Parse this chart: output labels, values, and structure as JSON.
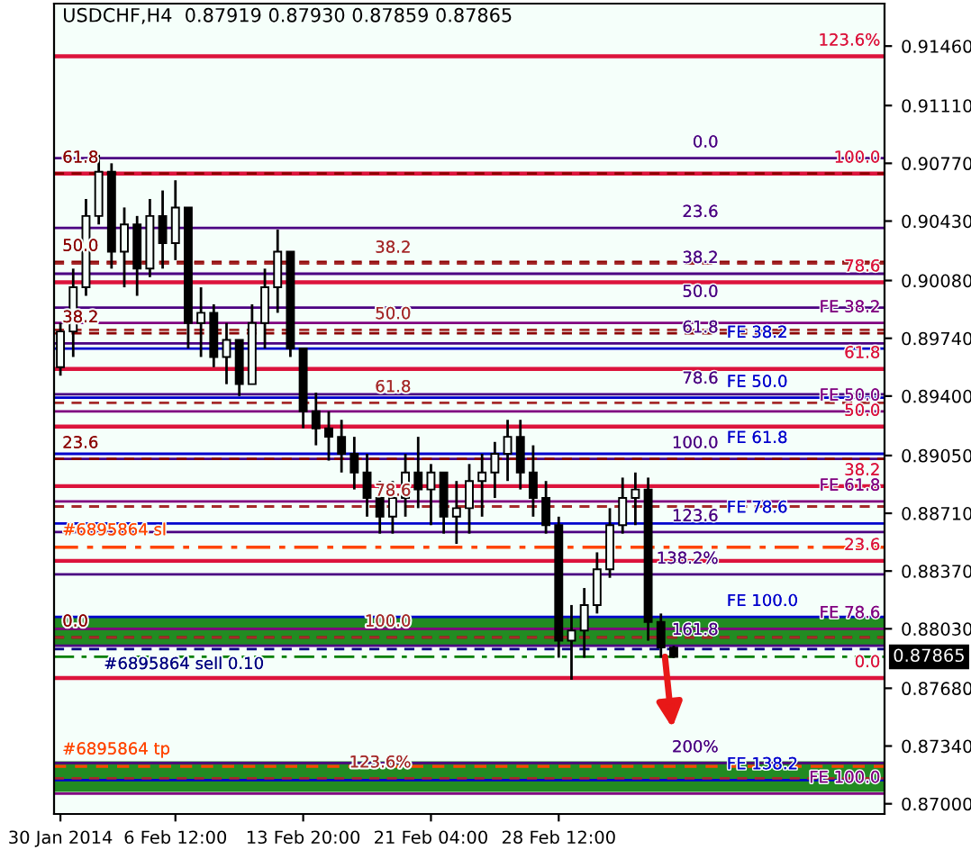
{
  "chart_data": {
    "type": "candlestick",
    "title": "USDCHF,H4  0.87919 0.87930 0.87859 0.87865",
    "color": "#000000",
    "categories": [
      "30 Jan 2014",
      null,
      null,
      null,
      null,
      null,
      null,
      null,
      null,
      "6 Feb 12:00",
      null,
      null,
      null,
      null,
      null,
      null,
      null,
      null,
      null,
      "13 Feb 20:00",
      null,
      null,
      null,
      null,
      null,
      null,
      null,
      null,
      null,
      "21 Feb 04:00",
      null,
      null,
      null,
      null,
      null,
      null,
      null,
      null,
      null,
      "28 Feb 12:00",
      null,
      null,
      null,
      null,
      null,
      null,
      null,
      null,
      null,
      null,
      null,
      null,
      null,
      null,
      null,
      null,
      null,
      null,
      null,
      null,
      null,
      null,
      null,
      null,
      null
    ],
    "ohlc": [
      [
        0.8957,
        0.8983,
        0.8952,
        0.8978
      ],
      [
        0.8978,
        0.9015,
        0.8963,
        0.9004
      ],
      [
        0.9004,
        0.9056,
        0.8999,
        0.9046
      ],
      [
        0.9046,
        0.9082,
        0.9041,
        0.9072
      ],
      [
        0.9072,
        0.9077,
        0.9015,
        0.9025
      ],
      [
        0.9025,
        0.9051,
        0.9004,
        0.9041
      ],
      [
        0.9041,
        0.9046,
        0.8999,
        0.9015
      ],
      [
        0.9015,
        0.9056,
        0.901,
        0.9046
      ],
      [
        0.9046,
        0.9061,
        0.9015,
        0.903
      ],
      [
        0.903,
        0.9067,
        0.902,
        0.9051
      ],
      [
        0.9051,
        0.9051,
        0.8968,
        0.8983
      ],
      [
        0.8983,
        0.9004,
        0.8963,
        0.8989
      ],
      [
        0.8989,
        0.8994,
        0.8957,
        0.8963
      ],
      [
        0.8963,
        0.8983,
        0.8947,
        0.8973
      ],
      [
        0.8973,
        0.8973,
        0.894,
        0.8947
      ],
      [
        0.8947,
        0.8994,
        0.8947,
        0.8983
      ],
      [
        0.8983,
        0.9015,
        0.8968,
        0.9004
      ],
      [
        0.9004,
        0.9038,
        0.8989,
        0.9025
      ],
      [
        0.9025,
        0.9025,
        0.8963,
        0.8968
      ],
      [
        0.8968,
        0.8968,
        0.8921,
        0.8931
      ],
      [
        0.8931,
        0.8942,
        0.8911,
        0.8921
      ],
      [
        0.8921,
        0.8931,
        0.8902,
        0.8916
      ],
      [
        0.8916,
        0.8926,
        0.8895,
        0.8906
      ],
      [
        0.8906,
        0.8916,
        0.8885,
        0.8895
      ],
      [
        0.8895,
        0.8906,
        0.8869,
        0.888
      ],
      [
        0.888,
        0.889,
        0.8859,
        0.8869
      ],
      [
        0.8869,
        0.889,
        0.8859,
        0.888
      ],
      [
        0.888,
        0.8906,
        0.8869,
        0.8895
      ],
      [
        0.8895,
        0.8916,
        0.8874,
        0.8885
      ],
      [
        0.8885,
        0.89,
        0.8864,
        0.8895
      ],
      [
        0.8895,
        0.8895,
        0.8859,
        0.8869
      ],
      [
        0.8869,
        0.889,
        0.8853,
        0.8874
      ],
      [
        0.8874,
        0.89,
        0.8859,
        0.889
      ],
      [
        0.889,
        0.8906,
        0.8869,
        0.8895
      ],
      [
        0.8895,
        0.8913,
        0.888,
        0.8906
      ],
      [
        0.8906,
        0.8926,
        0.889,
        0.8916
      ],
      [
        0.8916,
        0.8926,
        0.8885,
        0.8895
      ],
      [
        0.8895,
        0.8911,
        0.8869,
        0.888
      ],
      [
        0.888,
        0.889,
        0.8859,
        0.8864
      ],
      [
        0.8864,
        0.8869,
        0.8786,
        0.8796
      ],
      [
        0.8796,
        0.8817,
        0.8773,
        0.8802
      ],
      [
        0.8802,
        0.8827,
        0.8786,
        0.8817
      ],
      [
        0.8817,
        0.8848,
        0.8812,
        0.8838
      ],
      [
        0.8838,
        0.8874,
        0.8833,
        0.8864
      ],
      [
        0.8864,
        0.8892,
        0.8859,
        0.888
      ],
      [
        0.888,
        0.8895,
        0.8864,
        0.8885
      ],
      [
        0.8885,
        0.8892,
        0.8796,
        0.8807
      ],
      [
        0.8807,
        0.8812,
        0.8786,
        0.8792
      ],
      [
        0.87919,
        0.8793,
        0.87859,
        0.87865
      ],
      null,
      null,
      null,
      null,
      null,
      null,
      null,
      null,
      null,
      null,
      null,
      null,
      null,
      null,
      null,
      null
    ],
    "ylim": [
      0.8694,
      0.9171
    ],
    "yticks": [
      {
        "value": 0.9146,
        "label": "0.91460"
      },
      {
        "value": 0.9111,
        "label": "0.91110"
      },
      {
        "value": 0.9077,
        "label": "0.90770"
      },
      {
        "value": 0.9043,
        "label": "0.90430"
      },
      {
        "value": 0.9008,
        "label": "0.90080"
      },
      {
        "value": 0.8974,
        "label": "0.89740"
      },
      {
        "value": 0.894,
        "label": "0.89400"
      },
      {
        "value": 0.8905,
        "label": "0.89050"
      },
      {
        "value": 0.8871,
        "label": "0.88710"
      },
      {
        "value": 0.8837,
        "label": "0.88370"
      },
      {
        "value": 0.8803,
        "label": "0.88030"
      },
      {
        "value": 0.8768,
        "label": "0.87680"
      },
      {
        "value": 0.8734,
        "label": "0.87340"
      },
      {
        "value": 0.87,
        "label": "0.87000"
      }
    ],
    "bands": [
      {
        "axis": "y",
        "from": 0.8793,
        "to": 0.881,
        "color": "#228b22"
      },
      {
        "axis": "y",
        "from": 0.8707,
        "to": 0.8725,
        "color": "#228b22"
      }
    ],
    "ref_lines": [
      {
        "axis": "y",
        "value": 0.914,
        "color": "#dc143c",
        "line_style": "solid"
      },
      {
        "axis": "y",
        "value": 0.9071,
        "color": "#dc143c",
        "line_style": "solid"
      },
      {
        "axis": "y",
        "value": 0.9007,
        "color": "#dc143c",
        "line_style": "solid"
      },
      {
        "axis": "y",
        "value": 0.8956,
        "color": "#dc143c",
        "line_style": "solid"
      },
      {
        "axis": "y",
        "value": 0.8922,
        "color": "#dc143c",
        "line_style": "solid"
      },
      {
        "axis": "y",
        "value": 0.8887,
        "color": "#dc143c",
        "line_style": "solid"
      },
      {
        "axis": "y",
        "value": 0.8843,
        "color": "#dc143c",
        "line_style": "solid"
      },
      {
        "axis": "y",
        "value": 0.8774,
        "color": "#dc143c",
        "line_style": "solid"
      },
      {
        "axis": "y",
        "value": 0.8983,
        "label": "FE 38.2",
        "color": "#800080",
        "line_style": "solid"
      },
      {
        "axis": "y",
        "value": 0.8931,
        "label": "FE 50.0",
        "color": "#800080",
        "line_style": "solid"
      },
      {
        "axis": "y",
        "value": 0.8878,
        "label": "FE 61.8",
        "color": "#800080",
        "line_style": "solid"
      },
      {
        "axis": "y",
        "value": 0.8803,
        "label": "FE 78.6",
        "color": "#800080",
        "line_style": "solid"
      },
      {
        "axis": "y",
        "value": 0.8706,
        "label": "FE 100.0",
        "color": "#800080",
        "line_style": "solid"
      },
      {
        "axis": "y",
        "value": 0.8968,
        "label": "FE 38.2",
        "color": "#0000cd",
        "line_style": "solid"
      },
      {
        "axis": "y",
        "value": 0.8939,
        "label": "FE 50.0",
        "color": "#0000cd",
        "line_style": "solid"
      },
      {
        "axis": "y",
        "value": 0.8906,
        "label": "FE 61.8",
        "color": "#0000cd",
        "line_style": "solid"
      },
      {
        "axis": "y",
        "value": 0.8865,
        "label": "FE 78.6",
        "color": "#0000cd",
        "line_style": "solid"
      },
      {
        "axis": "y",
        "value": 0.881,
        "label": "FE 100.0",
        "color": "#0000cd",
        "line_style": "solid"
      },
      {
        "axis": "y",
        "value": 0.8714,
        "label": "FE 138.2",
        "color": "#0000cd",
        "line_style": "solid"
      },
      {
        "axis": "y",
        "value": 0.908,
        "color": "#4b0082",
        "line_style": "solid"
      },
      {
        "axis": "y",
        "value": 0.9039,
        "color": "#4b0082",
        "line_style": "solid"
      },
      {
        "axis": "y",
        "value": 0.9012,
        "color": "#4b0082",
        "line_style": "solid"
      },
      {
        "axis": "y",
        "value": 0.8992,
        "color": "#4b0082",
        "line_style": "solid"
      },
      {
        "axis": "y",
        "value": 0.8971,
        "color": "#4b0082",
        "line_style": "solid"
      },
      {
        "axis": "y",
        "value": 0.8941,
        "color": "#4b0082",
        "line_style": "solid"
      },
      {
        "axis": "y",
        "value": 0.8903,
        "color": "#4b0082",
        "line_style": "solid"
      },
      {
        "axis": "y",
        "value": 0.886,
        "color": "#4b0082",
        "line_style": "solid"
      },
      {
        "axis": "y",
        "value": 0.8835,
        "color": "#4b0082",
        "line_style": "solid"
      },
      {
        "axis": "y",
        "value": 0.8793,
        "color": "#4b0082",
        "line_style": "solid"
      },
      {
        "axis": "y",
        "value": 0.8724,
        "color": "#4b0082",
        "line_style": "solid"
      },
      {
        "axis": "y",
        "value": 0.9071,
        "color": "#8b0000",
        "line_style": "dashed"
      },
      {
        "axis": "y",
        "value": 0.9019,
        "color": "#8b0000",
        "line_style": "dashed"
      },
      {
        "axis": "y",
        "value": 0.8977,
        "color": "#8b0000",
        "line_style": "dashed"
      },
      {
        "axis": "y",
        "value": 0.8903,
        "color": "#8b0000",
        "line_style": "dashed"
      },
      {
        "axis": "y",
        "value": 0.8798,
        "color": "#8b0000",
        "line_style": "dashed"
      },
      {
        "axis": "y",
        "value": 0.9018,
        "color": "#a52a2a",
        "line_style": "dashed"
      },
      {
        "axis": "y",
        "value": 0.8979,
        "color": "#a52a2a",
        "line_style": "dashed"
      },
      {
        "axis": "y",
        "value": 0.8936,
        "color": "#a52a2a",
        "line_style": "dashed"
      },
      {
        "axis": "y",
        "value": 0.8875,
        "color": "#a52a2a",
        "line_style": "dashed"
      },
      {
        "axis": "y",
        "value": 0.8798,
        "color": "#a52a2a",
        "line_style": "dashed"
      },
      {
        "axis": "y",
        "value": 0.8715,
        "color": "#a52a2a",
        "line_style": "dashed"
      },
      {
        "axis": "y",
        "value": 0.8851,
        "label": "#6895864 sl",
        "color": "#ff4500",
        "line_style": "dashdot"
      },
      {
        "axis": "y",
        "value": 0.8722,
        "label": "#6895864 tp",
        "color": "#ff4500",
        "line_style": "dashed"
      },
      {
        "axis": "y",
        "value": 0.8791,
        "label": "#6895864 sell 0.10",
        "color": "#000080",
        "line_style": "dashed"
      },
      {
        "axis": "y",
        "value": 0.87865,
        "label": "0.87865",
        "color": "#008000",
        "line_style": "dashdot"
      }
    ],
    "annotations": [
      {
        "text": "123.6%",
        "y": 0.914
      },
      {
        "text": "100.0",
        "y": 0.9071
      },
      {
        "text": "78.6",
        "y": 0.9007
      },
      {
        "text": "61.8",
        "y": 0.8956
      },
      {
        "text": "50.0",
        "y": 0.8922
      },
      {
        "text": "38.2",
        "y": 0.8887
      },
      {
        "text": "23.6",
        "y": 0.8843
      },
      {
        "text": "0.0",
        "y": 0.8774
      },
      {
        "text": "0.0",
        "y": 0.908
      },
      {
        "text": "23.6",
        "y": 0.9039
      },
      {
        "text": "38.2",
        "y": 0.9012
      },
      {
        "text": "50.0",
        "y": 0.8992
      },
      {
        "text": "61.8",
        "y": 0.8971
      },
      {
        "text": "78.6",
        "y": 0.8941
      },
      {
        "text": "100.0",
        "y": 0.8903
      },
      {
        "text": "123.6",
        "y": 0.886
      },
      {
        "text": "138.2%",
        "y": 0.8835
      },
      {
        "text": "161.8",
        "y": 0.8793
      },
      {
        "text": "200%",
        "y": 0.8724
      },
      {
        "text": "61.8",
        "y": 0.9071
      },
      {
        "text": "50.0",
        "y": 0.9019
      },
      {
        "text": "38.2",
        "y": 0.8977
      },
      {
        "text": "23.6",
        "y": 0.8903
      },
      {
        "text": "0.0",
        "y": 0.8798
      },
      {
        "text": "38.2",
        "y": 0.9018
      },
      {
        "text": "50.0",
        "y": 0.8979
      },
      {
        "text": "61.8",
        "y": 0.8936
      },
      {
        "text": "78.6",
        "y": 0.8875
      },
      {
        "text": "100.0",
        "y": 0.8798
      },
      {
        "text": "123.6%",
        "y": 0.8715
      }
    ]
  }
}
